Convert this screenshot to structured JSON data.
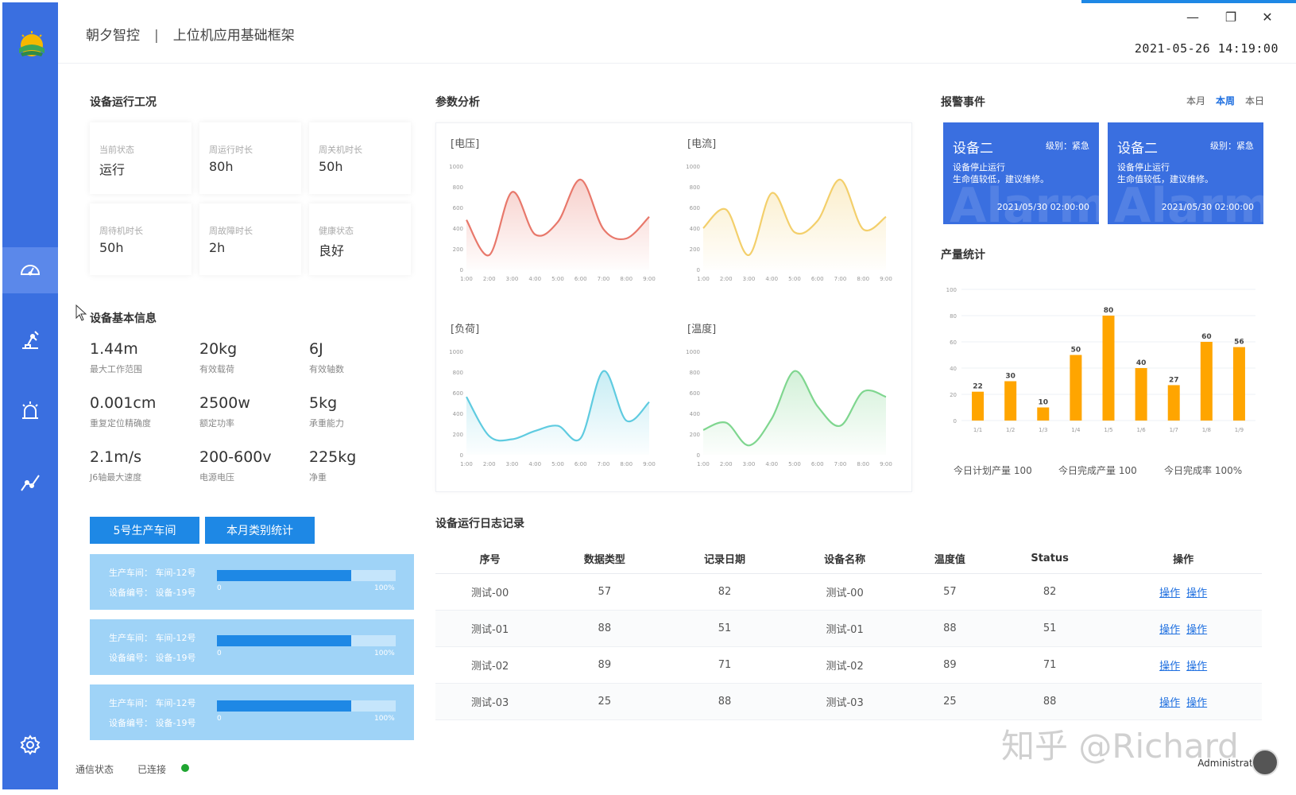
{
  "header": {
    "brand": "朝夕智控",
    "separator": "|",
    "app_title": "上位机应用基础框架",
    "datetime": "2021-05-26  14:19:00",
    "minimize": "—",
    "restore": "❐",
    "close": "✕"
  },
  "sidebar": {
    "items": [
      {
        "icon": "dashboard-icon",
        "active": true
      },
      {
        "icon": "robot-arm-icon",
        "active": false
      },
      {
        "icon": "alarm-icon",
        "active": false
      },
      {
        "icon": "trend-icon",
        "active": false
      },
      {
        "icon": "gear-icon",
        "active": false
      }
    ]
  },
  "device_status": {
    "title": "设备运行工况",
    "cards": [
      {
        "label": "当前状态",
        "value": "运行"
      },
      {
        "label": "周运行时长",
        "value": "80h"
      },
      {
        "label": "周关机时长",
        "value": "50h"
      },
      {
        "label": "周待机时长",
        "value": "50h"
      },
      {
        "label": "周故障时长",
        "value": "2h"
      },
      {
        "label": "健康状态",
        "value": "良好"
      }
    ]
  },
  "device_info": {
    "title": "设备基本信息",
    "items": [
      {
        "value": "1.44m",
        "label": "最大工作范围"
      },
      {
        "value": "20kg",
        "label": "有效载荷"
      },
      {
        "value": "6J",
        "label": "有效轴数"
      },
      {
        "value": "0.001cm",
        "label": "重复定位精确度"
      },
      {
        "value": "2500w",
        "label": "额定功率"
      },
      {
        "value": "5kg",
        "label": "承重能力"
      },
      {
        "value": "2.1m/s",
        "label": "J6轴最大速度"
      },
      {
        "value": "200-600v",
        "label": "电源电压"
      },
      {
        "value": "225kg",
        "label": "净重"
      }
    ]
  },
  "workshop": {
    "buttons": [
      "5号生产车间",
      "本月类别统计"
    ],
    "cards": [
      {
        "line1": "生产车间：  车间-12号",
        "line2": "设备编号：  设备-19号",
        "progress": 0.75,
        "min": "0",
        "max": "100%"
      },
      {
        "line1": "生产车间：  车间-12号",
        "line2": "设备编号：  设备-19号",
        "progress": 0.75,
        "min": "0",
        "max": "100%"
      },
      {
        "line1": "生产车间：  车间-12号",
        "line2": "设备编号：  设备-19号",
        "progress": 0.75,
        "min": "0",
        "max": "100%"
      }
    ]
  },
  "param_analysis": {
    "title": "参数分析"
  },
  "chart_data": [
    {
      "type": "line",
      "title": "[电压]",
      "x": [
        "1:00",
        "2:00",
        "3:00",
        "4:00",
        "5:00",
        "6:00",
        "7:00",
        "8:00",
        "9:00"
      ],
      "ylim": [
        0,
        1000
      ],
      "yticks": [
        0,
        200,
        400,
        600,
        800,
        1000
      ],
      "series": [
        {
          "values": [
            480,
            140,
            750,
            340,
            460,
            870,
            390,
            300,
            510
          ]
        }
      ],
      "color": "#e8786b",
      "grid": false
    },
    {
      "type": "line",
      "title": "[电流]",
      "x": [
        "1:00",
        "2:00",
        "3:00",
        "4:00",
        "5:00",
        "6:00",
        "7:00",
        "8:00",
        "9:00"
      ],
      "ylim": [
        0,
        1000
      ],
      "yticks": [
        0,
        200,
        400,
        600,
        800,
        1000
      ],
      "series": [
        {
          "values": [
            400,
            580,
            140,
            740,
            360,
            470,
            870,
            390,
            510
          ]
        }
      ],
      "color": "#f3cf6b",
      "grid": false
    },
    {
      "type": "line",
      "title": "[负荷]",
      "x": [
        "1:00",
        "2:00",
        "3:00",
        "4:00",
        "5:00",
        "6:00",
        "7:00",
        "8:00",
        "9:00"
      ],
      "ylim": [
        0,
        1000
      ],
      "yticks": [
        0,
        200,
        400,
        600,
        800,
        1000
      ],
      "series": [
        {
          "values": [
            560,
            180,
            150,
            230,
            280,
            160,
            810,
            330,
            510
          ]
        }
      ],
      "color": "#5fcbe0",
      "grid": false
    },
    {
      "type": "line",
      "title": "[温度]",
      "x": [
        "1:00",
        "2:00",
        "3:00",
        "4:00",
        "5:00",
        "6:00",
        "7:00",
        "8:00",
        "9:00"
      ],
      "ylim": [
        0,
        1000
      ],
      "yticks": [
        0,
        200,
        400,
        600,
        800,
        1000
      ],
      "series": [
        {
          "values": [
            240,
            310,
            90,
            350,
            810,
            470,
            280,
            610,
            560
          ]
        }
      ],
      "color": "#7fd68f",
      "grid": false
    },
    {
      "type": "bar",
      "title": "产量统计",
      "categories": [
        "1/1",
        "1/2",
        "1/3",
        "1/4",
        "1/5",
        "1/6",
        "1/7",
        "1/8",
        "1/9"
      ],
      "values": [
        22,
        30,
        10,
        50,
        80,
        40,
        27,
        60,
        56
      ],
      "ylim": [
        0,
        100
      ],
      "yticks": [
        0,
        20,
        40,
        60,
        80,
        100
      ],
      "color": "#ffa500",
      "grid": true
    }
  ],
  "alarm": {
    "title": "报警事件",
    "tabs": [
      {
        "label": "本月",
        "active": false
      },
      {
        "label": "本周",
        "active": true
      },
      {
        "label": "本日",
        "active": false
      }
    ],
    "cards": [
      {
        "device": "设备二",
        "level": "级别：紧急",
        "desc1": "设备停止运行",
        "desc2": "生命值较低，建议维修。",
        "time": "2021/05/30 02:00:00",
        "bg_word": "Alarm"
      },
      {
        "device": "设备二",
        "level": "级别：紧急",
        "desc1": "设备停止运行",
        "desc2": "生命值较低，建议维修。",
        "time": "2021/05/30 02:00:00",
        "bg_word": "Alarm"
      }
    ]
  },
  "production": {
    "kpis": [
      "今日计划产量 100",
      "今日完成产量 100",
      "今日完成率 100%"
    ]
  },
  "log": {
    "title": "设备运行日志记录",
    "columns": [
      "序号",
      "数据类型",
      "记录日期",
      "设备名称",
      "温度值",
      "Status",
      "操作"
    ],
    "rows": [
      [
        "测试-00",
        "57",
        "82",
        "测试-00",
        "57",
        "82"
      ],
      [
        "测试-01",
        "88",
        "51",
        "测试-01",
        "88",
        "51"
      ],
      [
        "测试-02",
        "89",
        "71",
        "测试-02",
        "89",
        "71"
      ],
      [
        "测试-03",
        "25",
        "88",
        "测试-03",
        "25",
        "88"
      ]
    ],
    "action_label": "操作"
  },
  "footer": {
    "comm_label": "通信状态",
    "comm_value": "已连接",
    "user": "Administrator"
  },
  "watermark": "知乎 @Richard"
}
